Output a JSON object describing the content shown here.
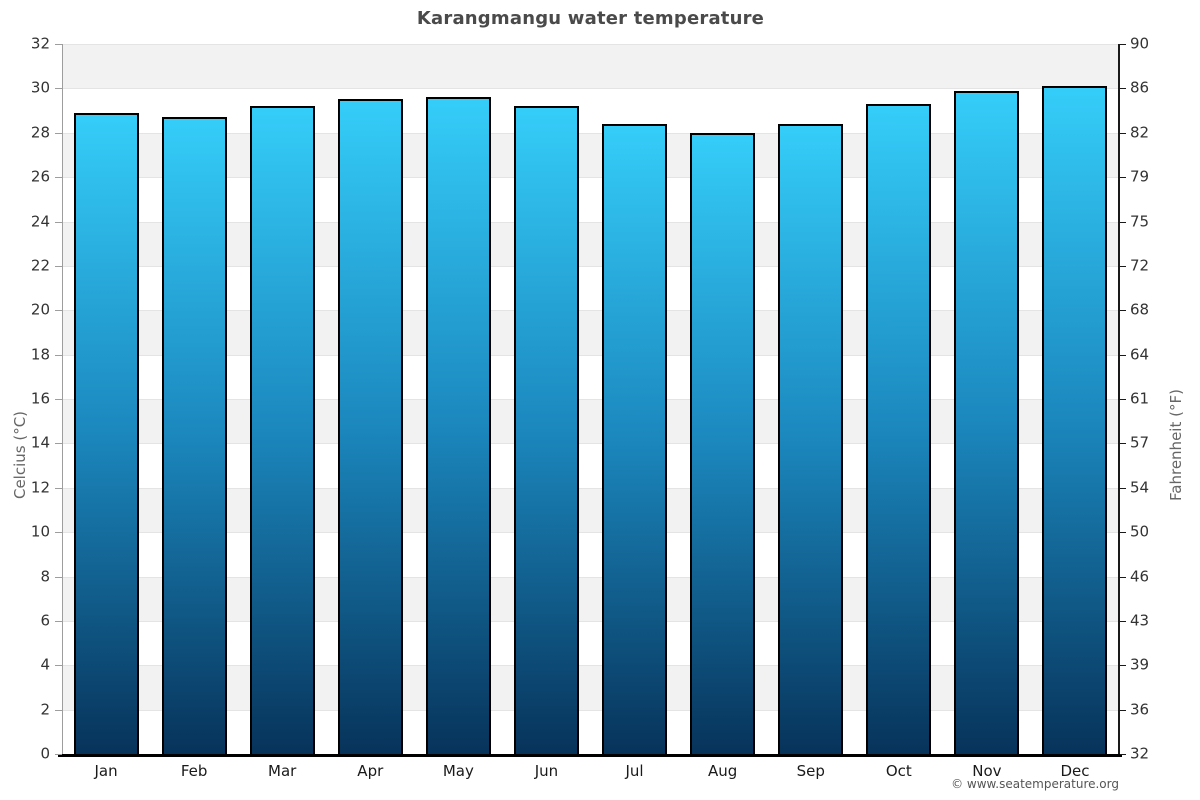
{
  "title": "Karangmangu water temperature",
  "footer": "© www.seatemperature.org",
  "axes": {
    "left_label": "Celcius (°C)",
    "right_label": "Fahrenheit (°F)"
  },
  "chart_data": {
    "type": "bar",
    "title": "Karangmangu water temperature",
    "categories": [
      "Jan",
      "Feb",
      "Mar",
      "Apr",
      "May",
      "Jun",
      "Jul",
      "Aug",
      "Sep",
      "Oct",
      "Nov",
      "Dec"
    ],
    "values": [
      28.9,
      28.7,
      29.2,
      29.5,
      29.6,
      29.2,
      28.4,
      28.0,
      28.4,
      29.3,
      29.9,
      30.1
    ],
    "unit": "°C",
    "xlabel": "",
    "ylabel_left": "Celcius (°C)",
    "ylabel_right": "Fahrenheit (°F)",
    "ylim": [
      0,
      32
    ],
    "yticks_celsius": [
      32,
      30,
      28,
      26,
      24,
      22,
      20,
      18,
      16,
      14,
      12,
      10,
      8,
      6,
      4,
      2,
      0
    ],
    "yticks_fahrenheit": [
      90,
      86,
      82,
      79,
      75,
      72,
      68,
      64,
      61,
      57,
      54,
      50,
      46,
      43,
      39,
      36,
      32
    ],
    "grid": "alternating-horizontal-bands-every-2C",
    "legend": "none",
    "colors": {
      "bar_top": "#35cdf9",
      "bar_mid": "#1b87bd",
      "bar_bottom": "#07335a",
      "bar_border": "#000000",
      "band_gray": "#f2f2f2",
      "band_white": "#ffffff",
      "gridline": "#e4e4e4",
      "title_text": "#4a4a4a",
      "tick_text": "#333333",
      "axis_title_text": "#666666"
    }
  }
}
